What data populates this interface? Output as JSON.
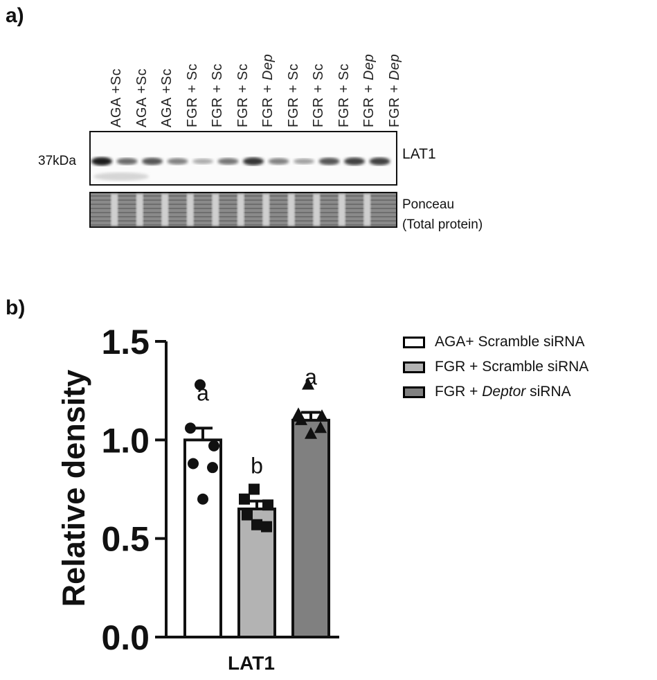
{
  "panel_labels": {
    "a": "a)",
    "b": "b)"
  },
  "blot": {
    "lanes": [
      {
        "group": "AGA",
        "treat": "+Sc",
        "italic": false
      },
      {
        "group": "AGA",
        "treat": "+Sc",
        "italic": false
      },
      {
        "group": "AGA",
        "treat": "+Sc",
        "italic": false
      },
      {
        "group": "FGR",
        "treat": "+ Sc",
        "italic": false
      },
      {
        "group": "FGR",
        "treat": "+ Sc",
        "italic": false
      },
      {
        "group": "FGR",
        "treat": "+ Sc",
        "italic": false
      },
      {
        "group": "FGR",
        "treat": "+ Dep",
        "italic": true
      },
      {
        "group": "FGR",
        "treat": "+ Sc",
        "italic": false
      },
      {
        "group": "FGR",
        "treat": "+ Sc",
        "italic": false
      },
      {
        "group": "FGR",
        "treat": "+ Sc",
        "italic": false
      },
      {
        "group": "FGR",
        "treat": "+ Dep",
        "italic": true
      },
      {
        "group": "FGR",
        "treat": "+ Dep",
        "italic": true
      }
    ],
    "band_intensity": [
      0.95,
      0.6,
      0.7,
      0.5,
      0.3,
      0.55,
      0.85,
      0.5,
      0.35,
      0.7,
      0.8,
      0.8
    ],
    "marker": "37kDa",
    "protein": "LAT1",
    "loading_label_line1": "Ponceau",
    "loading_label_line2": "(Total protein)"
  },
  "chart_data": {
    "type": "bar",
    "categories": [
      "LAT1"
    ],
    "ylabel": "Relative density",
    "ylim": [
      0,
      1.5
    ],
    "yticks": [
      "0.0",
      "0.5",
      "1.0",
      "1.5"
    ],
    "xlabel": "LAT1",
    "series": [
      {
        "name": "AGA+ Scramble siRNA",
        "value": 1.0,
        "sem": 0.06,
        "letter": "a",
        "fill": "#ffffff",
        "marker": "circle",
        "points": [
          1.28,
          1.06,
          0.97,
          0.88,
          0.86,
          0.7
        ]
      },
      {
        "name": "FGR + Scramble siRNA",
        "value": 0.65,
        "sem": 0.04,
        "letter": "b",
        "fill": "#b3b3b3",
        "marker": "square",
        "points": [
          0.75,
          0.7,
          0.67,
          0.62,
          0.56,
          0.57
        ]
      },
      {
        "name": "FGR + Deptor siRNA",
        "value": 1.1,
        "sem": 0.04,
        "letter": "a",
        "fill": "#808080",
        "marker": "triangle",
        "points": [
          1.28,
          1.13,
          1.12,
          1.1,
          1.06,
          1.03
        ]
      }
    ]
  },
  "legend": [
    {
      "prefix": "AGA+ Scramble siRNA",
      "italic": "",
      "suffix": "",
      "fill": "#ffffff"
    },
    {
      "prefix": "FGR + Scramble siRNA",
      "italic": "",
      "suffix": "",
      "fill": "#b3b3b3"
    },
    {
      "prefix": "FGR + ",
      "italic": "Deptor",
      "suffix": " siRNA",
      "fill": "#808080"
    }
  ]
}
